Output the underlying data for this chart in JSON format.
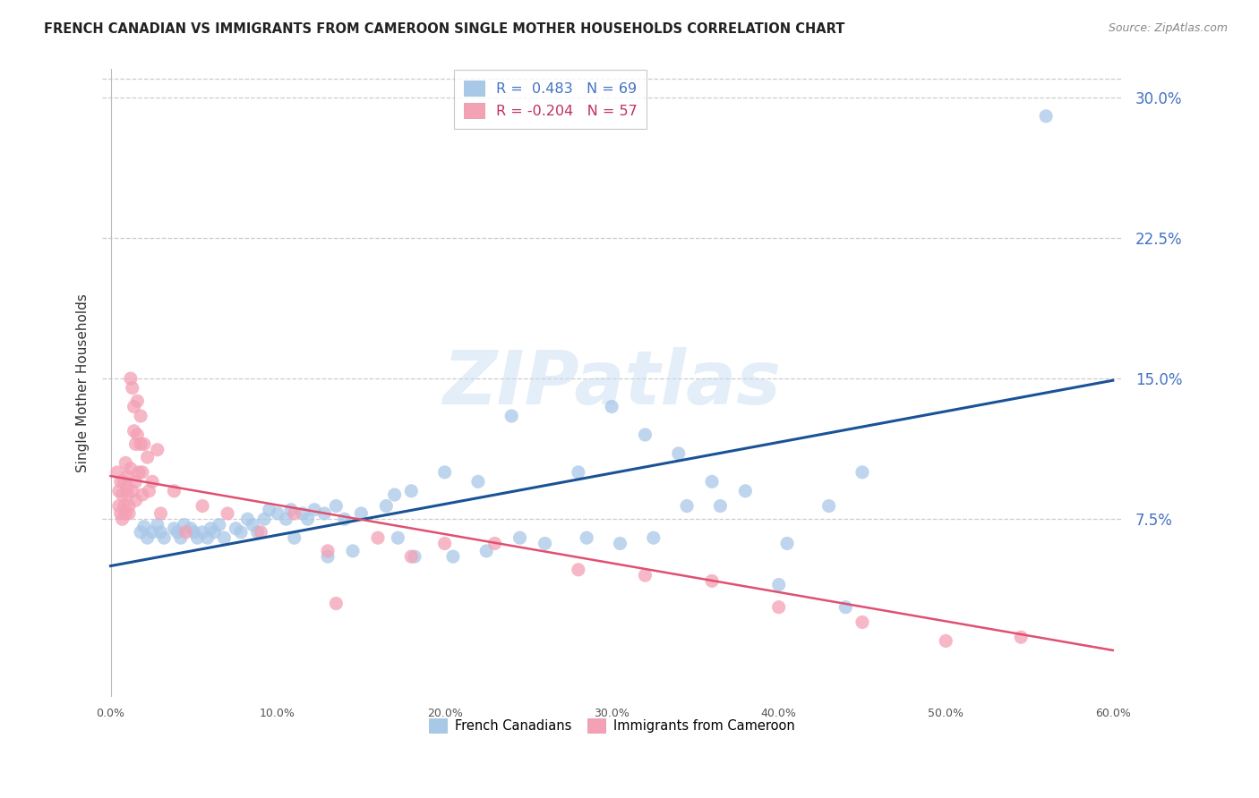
{
  "title": "FRENCH CANADIAN VS IMMIGRANTS FROM CAMEROON SINGLE MOTHER HOUSEHOLDS CORRELATION CHART",
  "source": "Source: ZipAtlas.com",
  "ylabel": "Single Mother Households",
  "yticks": [
    0.0,
    0.075,
    0.15,
    0.225,
    0.3
  ],
  "ytick_labels": [
    "",
    "7.5%",
    "15.0%",
    "22.5%",
    "30.0%"
  ],
  "xticks": [
    0.0,
    0.1,
    0.2,
    0.3,
    0.4,
    0.5,
    0.6
  ],
  "xtick_labels": [
    "0.0%",
    "10.0%",
    "20.0%",
    "30.0%",
    "40.0%",
    "50.0%",
    "60.0%"
  ],
  "xmin": 0.0,
  "xmax": 0.6,
  "ymin": -0.02,
  "ymax": 0.315,
  "legend1_label": "R =  0.483   N = 69",
  "legend2_label": "R = -0.204   N = 57",
  "legend_series1": "French Canadians",
  "legend_series2": "Immigrants from Cameroon",
  "blue_color": "#a8c8e8",
  "pink_color": "#f4a0b5",
  "blue_line_color": "#1a5296",
  "pink_line_color": "#e05070",
  "pink_dash_color": "#f0a0b8",
  "watermark_text": "ZIPatlas",
  "blue_intercept": 0.05,
  "blue_slope": 0.165,
  "pink_intercept": 0.098,
  "pink_slope": -0.155,
  "blue_points": [
    [
      0.018,
      0.068
    ],
    [
      0.02,
      0.071
    ],
    [
      0.022,
      0.065
    ],
    [
      0.025,
      0.068
    ],
    [
      0.028,
      0.072
    ],
    [
      0.03,
      0.068
    ],
    [
      0.032,
      0.065
    ],
    [
      0.038,
      0.07
    ],
    [
      0.04,
      0.068
    ],
    [
      0.042,
      0.065
    ],
    [
      0.044,
      0.072
    ],
    [
      0.048,
      0.07
    ],
    [
      0.05,
      0.068
    ],
    [
      0.052,
      0.065
    ],
    [
      0.055,
      0.068
    ],
    [
      0.058,
      0.065
    ],
    [
      0.06,
      0.07
    ],
    [
      0.062,
      0.068
    ],
    [
      0.065,
      0.072
    ],
    [
      0.068,
      0.065
    ],
    [
      0.075,
      0.07
    ],
    [
      0.078,
      0.068
    ],
    [
      0.082,
      0.075
    ],
    [
      0.085,
      0.072
    ],
    [
      0.088,
      0.068
    ],
    [
      0.092,
      0.075
    ],
    [
      0.095,
      0.08
    ],
    [
      0.1,
      0.078
    ],
    [
      0.105,
      0.075
    ],
    [
      0.108,
      0.08
    ],
    [
      0.11,
      0.065
    ],
    [
      0.115,
      0.078
    ],
    [
      0.118,
      0.075
    ],
    [
      0.122,
      0.08
    ],
    [
      0.128,
      0.078
    ],
    [
      0.13,
      0.055
    ],
    [
      0.135,
      0.082
    ],
    [
      0.14,
      0.075
    ],
    [
      0.145,
      0.058
    ],
    [
      0.15,
      0.078
    ],
    [
      0.165,
      0.082
    ],
    [
      0.17,
      0.088
    ],
    [
      0.172,
      0.065
    ],
    [
      0.18,
      0.09
    ],
    [
      0.182,
      0.055
    ],
    [
      0.2,
      0.1
    ],
    [
      0.205,
      0.055
    ],
    [
      0.22,
      0.095
    ],
    [
      0.225,
      0.058
    ],
    [
      0.24,
      0.13
    ],
    [
      0.245,
      0.065
    ],
    [
      0.26,
      0.062
    ],
    [
      0.28,
      0.1
    ],
    [
      0.285,
      0.065
    ],
    [
      0.3,
      0.135
    ],
    [
      0.305,
      0.062
    ],
    [
      0.32,
      0.12
    ],
    [
      0.325,
      0.065
    ],
    [
      0.34,
      0.11
    ],
    [
      0.345,
      0.082
    ],
    [
      0.36,
      0.095
    ],
    [
      0.365,
      0.082
    ],
    [
      0.38,
      0.09
    ],
    [
      0.4,
      0.04
    ],
    [
      0.405,
      0.062
    ],
    [
      0.43,
      0.082
    ],
    [
      0.44,
      0.028
    ],
    [
      0.45,
      0.1
    ],
    [
      0.56,
      0.29
    ]
  ],
  "pink_points": [
    [
      0.004,
      0.1
    ],
    [
      0.005,
      0.09
    ],
    [
      0.005,
      0.082
    ],
    [
      0.006,
      0.095
    ],
    [
      0.006,
      0.078
    ],
    [
      0.007,
      0.075
    ],
    [
      0.007,
      0.088
    ],
    [
      0.008,
      0.095
    ],
    [
      0.008,
      0.082
    ],
    [
      0.009,
      0.078
    ],
    [
      0.009,
      0.105
    ],
    [
      0.01,
      0.098
    ],
    [
      0.01,
      0.092
    ],
    [
      0.01,
      0.088
    ],
    [
      0.011,
      0.082
    ],
    [
      0.011,
      0.078
    ],
    [
      0.012,
      0.15
    ],
    [
      0.012,
      0.102
    ],
    [
      0.013,
      0.09
    ],
    [
      0.013,
      0.145
    ],
    [
      0.014,
      0.135
    ],
    [
      0.014,
      0.122
    ],
    [
      0.015,
      0.115
    ],
    [
      0.015,
      0.095
    ],
    [
      0.015,
      0.085
    ],
    [
      0.016,
      0.138
    ],
    [
      0.016,
      0.12
    ],
    [
      0.017,
      0.1
    ],
    [
      0.018,
      0.13
    ],
    [
      0.018,
      0.115
    ],
    [
      0.019,
      0.1
    ],
    [
      0.019,
      0.088
    ],
    [
      0.02,
      0.115
    ],
    [
      0.022,
      0.108
    ],
    [
      0.023,
      0.09
    ],
    [
      0.025,
      0.095
    ],
    [
      0.028,
      0.112
    ],
    [
      0.03,
      0.078
    ],
    [
      0.038,
      0.09
    ],
    [
      0.045,
      0.068
    ],
    [
      0.055,
      0.082
    ],
    [
      0.07,
      0.078
    ],
    [
      0.09,
      0.068
    ],
    [
      0.11,
      0.078
    ],
    [
      0.13,
      0.058
    ],
    [
      0.135,
      0.03
    ],
    [
      0.16,
      0.065
    ],
    [
      0.18,
      0.055
    ],
    [
      0.2,
      0.062
    ],
    [
      0.23,
      0.062
    ],
    [
      0.28,
      0.048
    ],
    [
      0.32,
      0.045
    ],
    [
      0.36,
      0.042
    ],
    [
      0.4,
      0.028
    ],
    [
      0.45,
      0.02
    ],
    [
      0.5,
      0.01
    ],
    [
      0.545,
      0.012
    ]
  ]
}
